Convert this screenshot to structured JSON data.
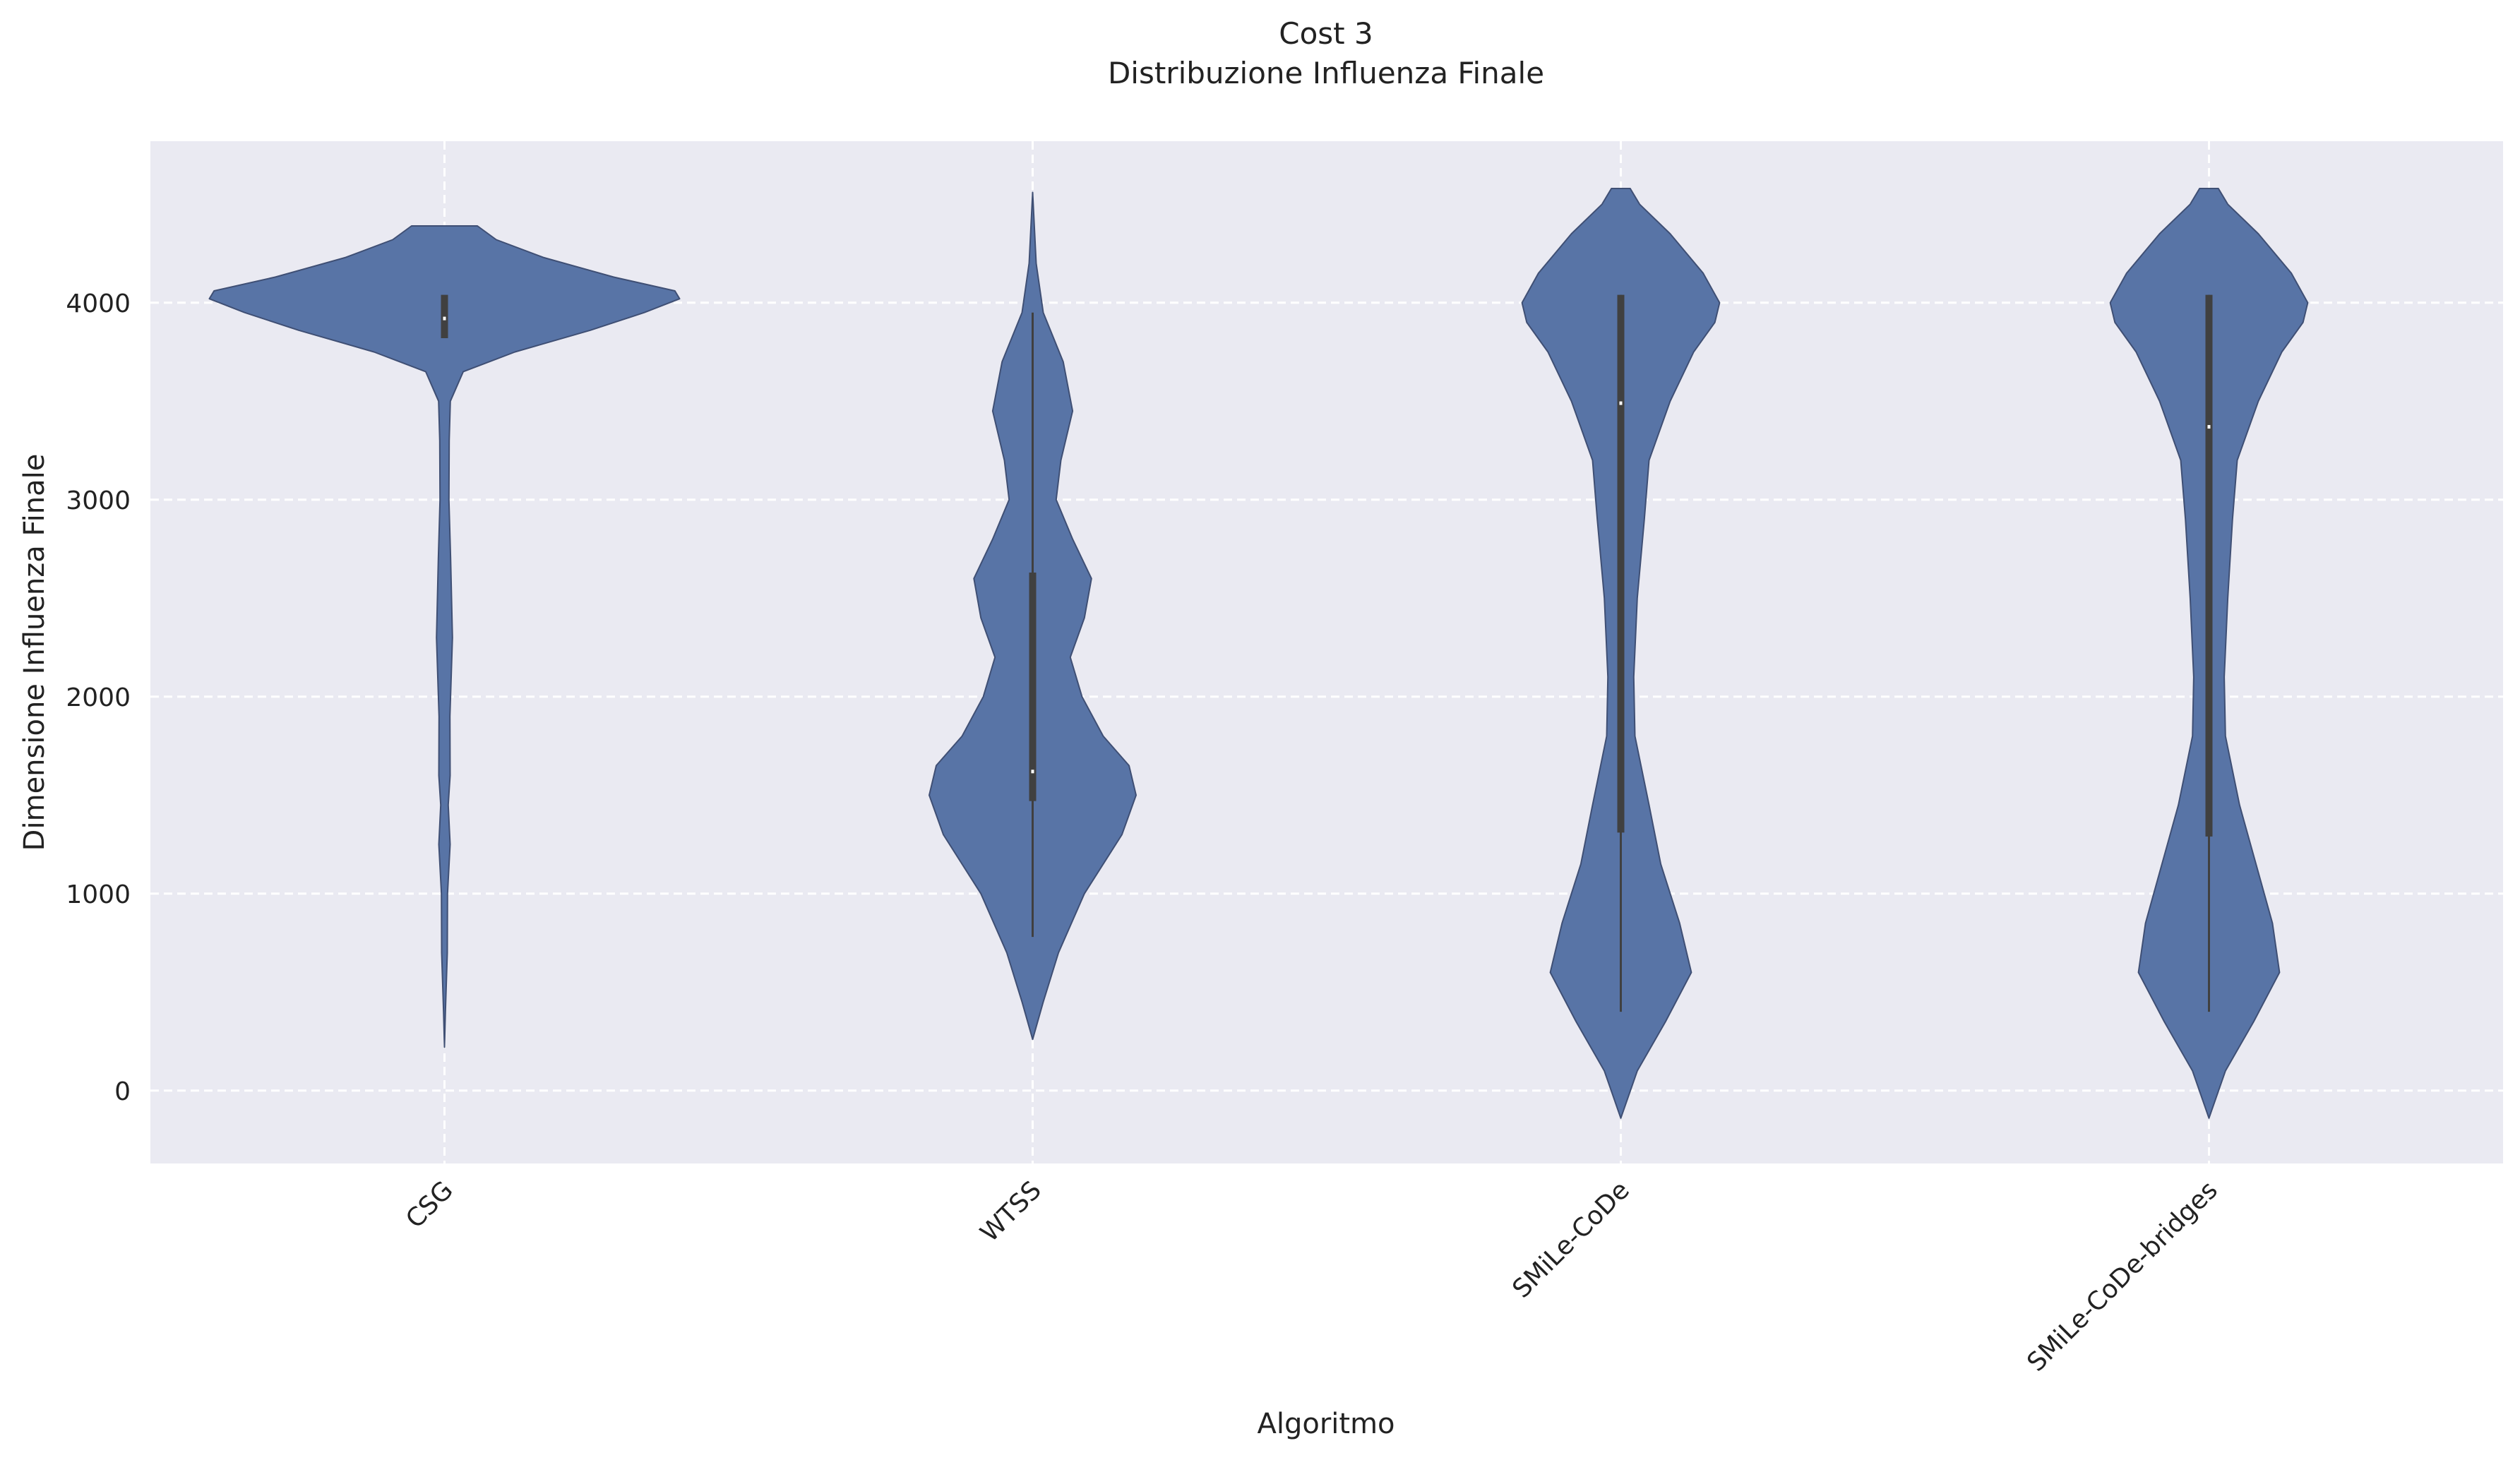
{
  "chart_data": {
    "type": "violin",
    "title": "Cost 3",
    "subtitle": "Distribuzione Influenza Finale",
    "xlabel": "Algoritmo",
    "ylabel": "Dimensione Influenza Finale",
    "categories": [
      "CSG",
      "WTSS",
      "SMiLe-CoDe",
      "SMiLe-CoDe-bridges"
    ],
    "ylim": [
      -370,
      4820
    ],
    "yticks": [
      0,
      1000,
      2000,
      3000,
      4000
    ],
    "grid": true,
    "colors": {
      "violin": "#5874a6",
      "plot_bg": "#eaeaf2",
      "inner_box": "#404040"
    },
    "violins": [
      {
        "name": "CSG",
        "range": [
          220,
          4390
        ],
        "box": {
          "q1": 3820,
          "median": 3920,
          "q3": 4040
        },
        "density": [
          [
            220,
            0.0
          ],
          [
            400,
            0.004
          ],
          [
            700,
            0.012
          ],
          [
            1000,
            0.013
          ],
          [
            1250,
            0.024
          ],
          [
            1450,
            0.016
          ],
          [
            1600,
            0.024
          ],
          [
            1900,
            0.023
          ],
          [
            2300,
            0.034
          ],
          [
            2700,
            0.026
          ],
          [
            3000,
            0.019
          ],
          [
            3300,
            0.02
          ],
          [
            3500,
            0.025
          ],
          [
            3650,
            0.08
          ],
          [
            3750,
            0.3
          ],
          [
            3860,
            0.62
          ],
          [
            3950,
            0.85
          ],
          [
            4020,
            1.0
          ],
          [
            4060,
            0.98
          ],
          [
            4130,
            0.72
          ],
          [
            4230,
            0.42
          ],
          [
            4320,
            0.22
          ],
          [
            4390,
            0.14
          ]
        ]
      },
      {
        "name": "WTSS",
        "range": [
          260,
          4560
        ],
        "box": {
          "q1": 1470,
          "median": 1620,
          "q3": 2630
        },
        "whisker": [
          780,
          3950
        ],
        "density": [
          [
            260,
            0.0
          ],
          [
            450,
            0.045
          ],
          [
            700,
            0.11
          ],
          [
            1000,
            0.22
          ],
          [
            1300,
            0.38
          ],
          [
            1500,
            0.44
          ],
          [
            1650,
            0.41
          ],
          [
            1800,
            0.3
          ],
          [
            2000,
            0.21
          ],
          [
            2200,
            0.16
          ],
          [
            2400,
            0.22
          ],
          [
            2600,
            0.25
          ],
          [
            2800,
            0.17
          ],
          [
            3000,
            0.1
          ],
          [
            3200,
            0.12
          ],
          [
            3450,
            0.17
          ],
          [
            3700,
            0.13
          ],
          [
            3950,
            0.045
          ],
          [
            4200,
            0.015
          ],
          [
            4560,
            0.0
          ]
        ]
      },
      {
        "name": "SMiLe-CoDe",
        "range": [
          -140,
          4580
        ],
        "box": {
          "q1": 1310,
          "median": 3490,
          "q3": 4040
        },
        "whisker": [
          400,
          4040
        ],
        "density": [
          [
            -140,
            0.0
          ],
          [
            100,
            0.07
          ],
          [
            350,
            0.19
          ],
          [
            600,
            0.3
          ],
          [
            850,
            0.25
          ],
          [
            1150,
            0.17
          ],
          [
            1450,
            0.12
          ],
          [
            1800,
            0.06
          ],
          [
            2100,
            0.055
          ],
          [
            2500,
            0.07
          ],
          [
            2900,
            0.1
          ],
          [
            3200,
            0.12
          ],
          [
            3500,
            0.21
          ],
          [
            3750,
            0.31
          ],
          [
            3900,
            0.4
          ],
          [
            4000,
            0.42
          ],
          [
            4150,
            0.35
          ],
          [
            4350,
            0.21
          ],
          [
            4500,
            0.08
          ],
          [
            4580,
            0.04
          ]
        ]
      },
      {
        "name": "SMiLe-CoDe-bridges",
        "range": [
          -140,
          4580
        ],
        "box": {
          "q1": 1290,
          "median": 3370,
          "q3": 4040
        },
        "whisker": [
          400,
          4040
        ],
        "density": [
          [
            -140,
            0.0
          ],
          [
            100,
            0.07
          ],
          [
            350,
            0.19
          ],
          [
            600,
            0.3
          ],
          [
            850,
            0.27
          ],
          [
            1150,
            0.2
          ],
          [
            1450,
            0.13
          ],
          [
            1800,
            0.07
          ],
          [
            2100,
            0.065
          ],
          [
            2500,
            0.08
          ],
          [
            2900,
            0.1
          ],
          [
            3200,
            0.12
          ],
          [
            3500,
            0.21
          ],
          [
            3750,
            0.31
          ],
          [
            3900,
            0.4
          ],
          [
            4000,
            0.42
          ],
          [
            4150,
            0.35
          ],
          [
            4350,
            0.21
          ],
          [
            4500,
            0.08
          ],
          [
            4580,
            0.04
          ]
        ]
      }
    ]
  }
}
